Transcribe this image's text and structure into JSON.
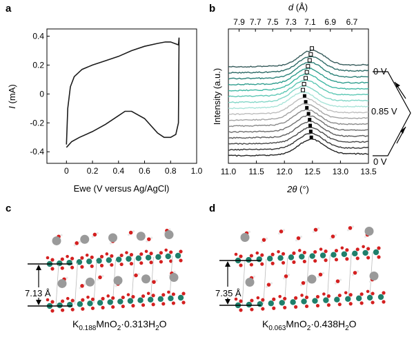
{
  "panels": {
    "a": "a",
    "b": "b",
    "c": "c",
    "d": "d"
  },
  "chart_data": [
    {
      "panel": "a",
      "type": "line",
      "xlabel": "Ewe (V versus Ag/AgCl)",
      "ylabel_italic": "I",
      "ylabel_rest": " (mA)",
      "xlim": [
        -0.15,
        1.0
      ],
      "ylim": [
        -0.48,
        0.45
      ],
      "xticks": [
        "0",
        "0.2",
        "0.4",
        "0.6",
        "0.8",
        "1.0"
      ],
      "xtick_values": [
        0,
        0.2,
        0.4,
        0.6,
        0.8,
        1.0
      ],
      "yticks": [
        "0.4",
        "0.2",
        "0",
        "-0.2",
        "-0.4"
      ],
      "ytick_values": [
        0.4,
        0.2,
        0,
        -0.2,
        -0.4
      ],
      "series": [
        {
          "x": [
            0.0,
            0.01,
            0.03,
            0.06,
            0.12,
            0.2,
            0.3,
            0.4,
            0.5,
            0.6,
            0.7,
            0.76,
            0.8,
            0.83,
            0.86,
            0.865,
            0.86,
            0.84,
            0.8,
            0.75,
            0.7,
            0.6,
            0.5,
            0.45,
            0.4,
            0.3,
            0.2,
            0.1,
            0.04,
            0.01,
            0.0
          ],
          "y": [
            -0.35,
            -0.1,
            0.05,
            0.12,
            0.17,
            0.2,
            0.23,
            0.26,
            0.3,
            0.33,
            0.35,
            0.36,
            0.36,
            0.35,
            0.34,
            0.39,
            -0.2,
            -0.28,
            -0.3,
            -0.3,
            -0.27,
            -0.17,
            -0.12,
            -0.12,
            -0.15,
            -0.21,
            -0.26,
            -0.3,
            -0.33,
            -0.36,
            -0.37
          ]
        }
      ]
    },
    {
      "panel": "b",
      "type": "line",
      "xlabel_italic": "2θ",
      "xlabel_rest": " (°)",
      "ylabel": "Intensity (a.u.)",
      "top_label_italic": "d",
      "top_label_rest": " (Å)",
      "xlim": [
        11.0,
        13.5
      ],
      "xticks": [
        "11.0",
        "11.5",
        "12.0",
        "12.5",
        "13.0",
        "13.5"
      ],
      "xtick_values": [
        11.0,
        11.5,
        12.0,
        12.5,
        13.0,
        13.5
      ],
      "top_ticks": [
        "7.9",
        "7.7",
        "7.5",
        "7.3",
        "7.1",
        "6.9",
        "6.7"
      ],
      "top_tick_values": [
        7.9,
        7.7,
        7.5,
        7.3,
        7.1,
        6.9,
        6.7
      ],
      "curve_count": 16,
      "curve_colors": [
        "#222222",
        "#333333",
        "#474747",
        "#5a5a5a",
        "#6e6e6e",
        "#888888",
        "#a3a3a3",
        "#bdbdbd",
        "#a8e3d8",
        "#82d6c7",
        "#5cc7b4",
        "#3eb7a3",
        "#2d9c8d",
        "#2a8077",
        "#2c6a66",
        "#355a5a"
      ],
      "peak_positions": [
        12.48,
        12.47,
        12.46,
        12.45,
        12.43,
        12.4,
        12.38,
        12.36,
        12.33,
        12.35,
        12.38,
        12.4,
        12.42,
        12.45,
        12.47,
        12.49
      ],
      "marker_filled": [
        true,
        true,
        true,
        true,
        true,
        true,
        true,
        true,
        false,
        false,
        false,
        false,
        false,
        false,
        false,
        false
      ],
      "voltage_labels": [
        "0 V",
        "0.85 V",
        "0 V"
      ]
    }
  ],
  "structures": {
    "c": {
      "spacing": "7.13 Å",
      "formula_pre": "K",
      "formula_sub1": "0.188",
      "formula_mid": "MnO",
      "formula_sub2": "2",
      "formula_post": "·0.313H",
      "formula_sub3": "2",
      "formula_end": "O"
    },
    "d": {
      "spacing": "7.35 Å",
      "formula_pre": "K",
      "formula_sub1": "0.063",
      "formula_mid": "MnO",
      "formula_sub2": "2",
      "formula_post": "·0.438H",
      "formula_sub3": "2",
      "formula_end": "O"
    }
  },
  "colors": {
    "mn": "#1f7f6b",
    "o": "#d42020",
    "k": "#9a9a9a",
    "h": "#e8e8e8"
  }
}
